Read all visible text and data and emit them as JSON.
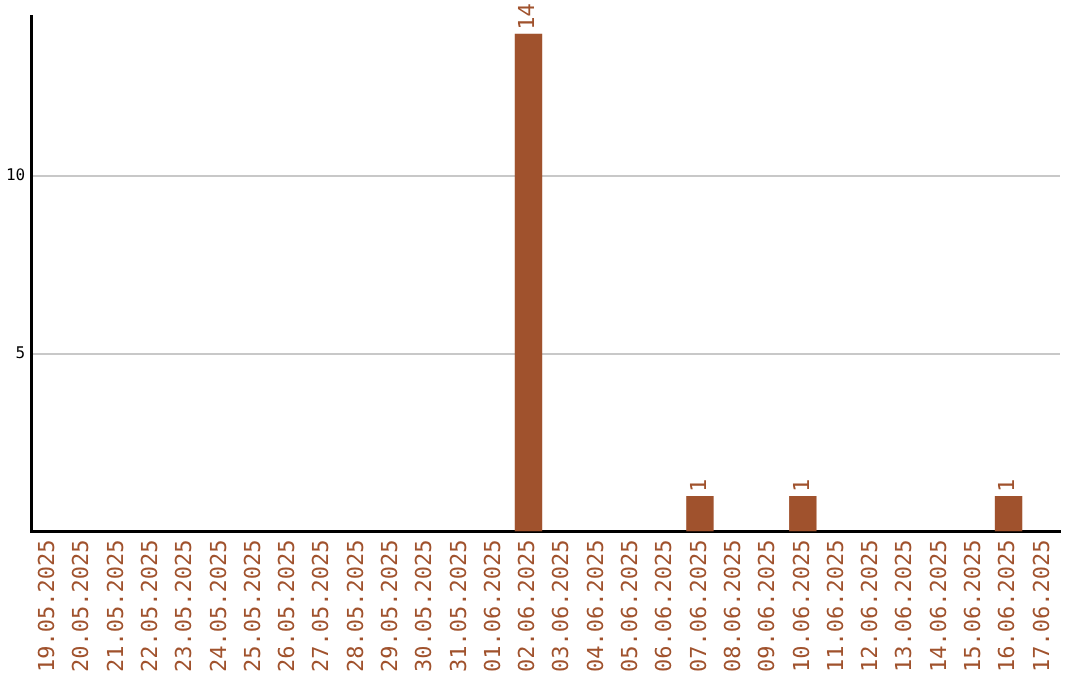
{
  "chart_data": {
    "type": "bar",
    "categories": [
      "19.05.2025",
      "20.05.2025",
      "21.05.2025",
      "22.05.2025",
      "23.05.2025",
      "24.05.2025",
      "25.05.2025",
      "26.05.2025",
      "27.05.2025",
      "28.05.2025",
      "29.05.2025",
      "30.05.2025",
      "31.05.2025",
      "01.06.2025",
      "02.06.2025",
      "03.06.2025",
      "04.06.2025",
      "05.06.2025",
      "06.06.2025",
      "07.06.2025",
      "08.06.2025",
      "09.06.2025",
      "10.06.2025",
      "11.06.2025",
      "12.06.2025",
      "13.06.2025",
      "14.06.2025",
      "15.06.2025",
      "16.06.2025",
      "17.06.2025"
    ],
    "values": [
      0,
      0,
      0,
      0,
      0,
      0,
      0,
      0,
      0,
      0,
      0,
      0,
      0,
      0,
      14,
      0,
      0,
      0,
      0,
      1,
      0,
      0,
      1,
      0,
      0,
      0,
      0,
      0,
      1,
      0
    ],
    "value_labels": [
      null,
      null,
      null,
      null,
      null,
      null,
      null,
      null,
      null,
      null,
      null,
      null,
      null,
      null,
      "14",
      null,
      null,
      null,
      null,
      "1",
      null,
      null,
      "1",
      null,
      null,
      null,
      null,
      null,
      "1",
      null
    ],
    "color": "#a0522d",
    "ylim": [
      0,
      14.5
    ],
    "yticks": [
      5,
      10
    ],
    "grid": "y",
    "legend": false
  }
}
